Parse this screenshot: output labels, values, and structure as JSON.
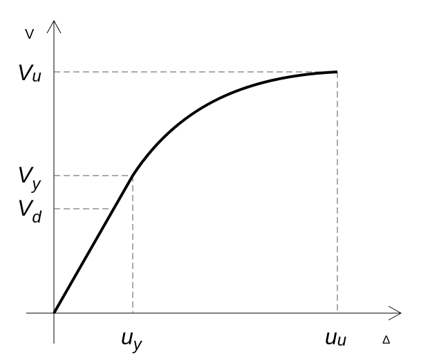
{
  "diagram": {
    "y_axis_label": "V",
    "x_axis_label": "Δ",
    "y_labels": [
      {
        "main": "V",
        "sub": "u"
      },
      {
        "main": "V",
        "sub": "y"
      },
      {
        "main": "V",
        "sub": "d"
      }
    ],
    "x_labels": [
      {
        "main": "u",
        "sub": "y"
      },
      {
        "main": "u",
        "sub": "u"
      }
    ],
    "colors": {
      "curve": "#000000",
      "axes": "#000000",
      "guides": "#555555"
    }
  }
}
